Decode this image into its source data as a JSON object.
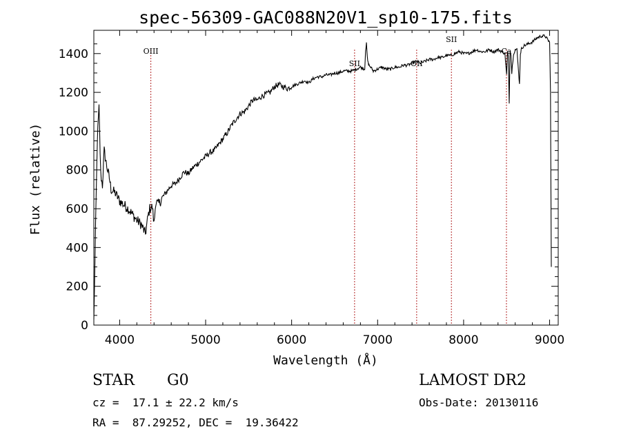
{
  "chart_data": {
    "type": "line",
    "title": "spec-56309-GAC088N20V1_sp10-175.fits",
    "xlabel": "Wavelength (Å)",
    "ylabel": "Flux (relative)",
    "xlim": [
      3700,
      9100
    ],
    "ylim": [
      0,
      1520
    ],
    "xticks": [
      4000,
      5000,
      6000,
      7000,
      8000,
      9000
    ],
    "yticks": [
      0,
      200,
      400,
      600,
      800,
      1000,
      1200,
      1400
    ],
    "grid": false,
    "line_color": "#000000",
    "marker_color": "#b22222",
    "series": [
      {
        "x": [
          3700,
          3720,
          3740,
          3760,
          3780,
          3800,
          3820,
          3850,
          3880,
          3900,
          3950,
          4000,
          4050,
          4100,
          4150,
          4200,
          4250,
          4300,
          4330,
          4350,
          4380,
          4400,
          4420,
          4450,
          4500,
          4550,
          4600,
          4650,
          4700,
          4750,
          4800,
          4850,
          4900,
          4950,
          5000,
          5050,
          5100,
          5150,
          5200,
          5250,
          5300,
          5350,
          5400,
          5450,
          5500,
          5550,
          5600,
          5650,
          5700,
          5750,
          5800,
          5850,
          5900,
          5950,
          6000,
          6050,
          6100,
          6150,
          6200,
          6250,
          6300,
          6350,
          6400,
          6450,
          6500,
          6550,
          6600,
          6650,
          6700,
          6750,
          6800,
          6850,
          6860,
          6870,
          6880,
          6890,
          6900,
          6920,
          6950,
          7000,
          7050,
          7100,
          7150,
          7200,
          7250,
          7300,
          7350,
          7400,
          7450,
          7500,
          7550,
          7600,
          7650,
          7700,
          7750,
          7800,
          7850,
          7900,
          7950,
          8000,
          8050,
          8100,
          8150,
          8200,
          8250,
          8300,
          8350,
          8400,
          8450,
          8480,
          8500,
          8510,
          8520,
          8530,
          8540,
          8550,
          8560,
          8580,
          8600,
          8620,
          8640,
          8650,
          8660,
          8670,
          8680,
          8700,
          8750,
          8800,
          8850,
          8900,
          8950,
          8980,
          9000,
          9010,
          9020
        ],
        "y": [
          20,
          500,
          950,
          1120,
          780,
          720,
          900,
          820,
          760,
          700,
          680,
          640,
          620,
          600,
          570,
          540,
          520,
          470,
          560,
          600,
          610,
          520,
          640,
          620,
          660,
          690,
          720,
          730,
          760,
          790,
          780,
          810,
          830,
          850,
          870,
          890,
          900,
          930,
          960,
          990,
          1030,
          1060,
          1090,
          1100,
          1130,
          1160,
          1160,
          1180,
          1190,
          1200,
          1230,
          1240,
          1230,
          1220,
          1230,
          1240,
          1250,
          1260,
          1250,
          1270,
          1280,
          1280,
          1290,
          1290,
          1300,
          1300,
          1310,
          1310,
          1310,
          1320,
          1330,
          1320,
          1420,
          1450,
          1380,
          1350,
          1340,
          1330,
          1310,
          1320,
          1330,
          1320,
          1320,
          1330,
          1330,
          1340,
          1340,
          1350,
          1360,
          1350,
          1360,
          1370,
          1370,
          1380,
          1380,
          1390,
          1390,
          1400,
          1410,
          1400,
          1400,
          1410,
          1420,
          1410,
          1410,
          1420,
          1410,
          1420,
          1410,
          1400,
          1290,
          1410,
          1380,
          1150,
          1420,
          1400,
          1300,
          1400,
          1420,
          1420,
          1300,
          1240,
          1400,
          1420,
          1430,
          1440,
          1450,
          1460,
          1480,
          1490,
          1490,
          1470,
          1460,
          1200,
          300
        ]
      }
    ],
    "lines": [
      {
        "label": "OIII",
        "x": 4363
      },
      {
        "label": "SII",
        "x": 6732
      },
      {
        "label": "OII",
        "x": 7454
      },
      {
        "label": "SII",
        "x": 7858
      },
      {
        "label": "Ca",
        "x": 8498
      }
    ]
  },
  "info": {
    "object_class": "STAR",
    "subclass": "G0",
    "redshift": "cz =  17.1 ± 22.2 km/s",
    "coords": "RA =  87.29252, DEC =  19.36422",
    "survey": "LAMOST DR2",
    "obs_date": "Obs-Date: 20130116"
  }
}
